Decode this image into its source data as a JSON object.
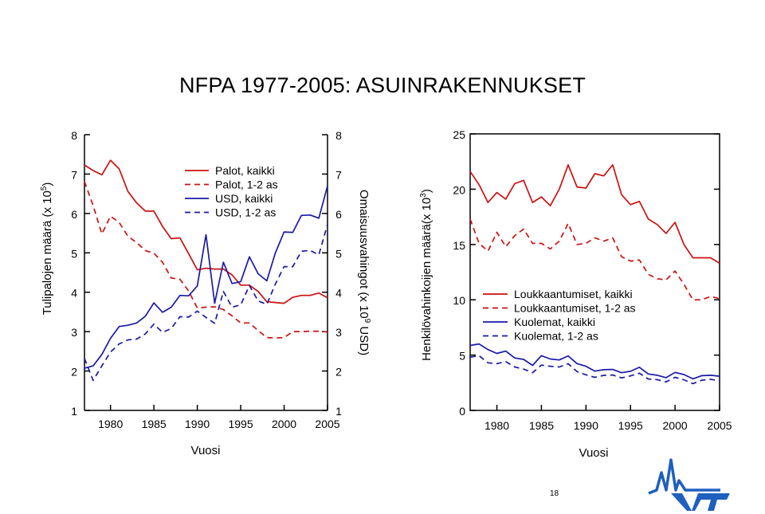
{
  "title": "NFPA 1977-2005: ASUINRAKENNUKSET",
  "page_number": "18",
  "logo_text": "VTT",
  "colors": {
    "red": "#cc1111",
    "blue": "#1a1aa6",
    "logo_blue": "#1f5fbf",
    "axis": "#000000"
  },
  "chart_data": [
    {
      "type": "line",
      "xlabel": "Vuosi",
      "xlim": [
        1977,
        2005
      ],
      "xticks": [
        1980,
        1985,
        1990,
        1995,
        2000,
        2005
      ],
      "ylabel_left_main": "Tulipalojen määrä (x 10",
      "ylabel_left_sup": "5",
      "ylabel_left_end": ")",
      "ylim_left": [
        1,
        8
      ],
      "yticks_left": [
        1,
        2,
        3,
        4,
        5,
        6,
        7,
        8
      ],
      "ylabel_right_main": "Omaisuusvahingot (x 10",
      "ylabel_right_sup": "9",
      "ylabel_right_end": " USD)",
      "ylim_right": [
        1,
        8
      ],
      "yticks_right": [
        1,
        2,
        3,
        4,
        5,
        6,
        7,
        8
      ],
      "legend_position": "top",
      "series": [
        {
          "name": "Palot, kaikki",
          "color": "#cc1111",
          "dash": false,
          "values": [
            7.23,
            7.09,
            6.98,
            7.35,
            7.13,
            6.56,
            6.27,
            6.06,
            6.06,
            5.67,
            5.36,
            5.38,
            4.98,
            4.57,
            4.61,
            4.59,
            4.59,
            4.44,
            4.18,
            4.18,
            4.02,
            3.76,
            3.74,
            3.72,
            3.87,
            3.92,
            3.92,
            3.98,
            3.86
          ]
        },
        {
          "name": "Palot, 1-2 as",
          "color": "#cc1111",
          "dash": true,
          "values": [
            6.81,
            6.2,
            5.48,
            5.93,
            5.77,
            5.42,
            5.26,
            5.06,
            4.99,
            4.76,
            4.36,
            4.33,
            4.03,
            3.6,
            3.62,
            3.63,
            3.56,
            3.4,
            3.22,
            3.22,
            3.03,
            2.85,
            2.84,
            2.85,
            3.0,
            3.0,
            3.01,
            3.01,
            2.99
          ]
        },
        {
          "name": "USD, kaikki",
          "color": "#1a1aa6",
          "dash": false,
          "values": [
            2.07,
            2.13,
            2.42,
            2.83,
            3.13,
            3.16,
            3.22,
            3.39,
            3.73,
            3.49,
            3.62,
            3.92,
            3.91,
            4.16,
            5.46,
            3.72,
            4.76,
            4.22,
            4.27,
            4.9,
            4.47,
            4.29,
            5.0,
            5.53,
            5.52,
            5.95,
            5.96,
            5.88,
            6.7
          ]
        },
        {
          "name": "USD, 1-2 as",
          "color": "#1a1aa6",
          "dash": true,
          "values": [
            2.32,
            1.76,
            2.13,
            2.48,
            2.69,
            2.79,
            2.81,
            2.94,
            3.19,
            2.98,
            3.08,
            3.38,
            3.37,
            3.52,
            3.36,
            3.21,
            4.02,
            3.62,
            3.68,
            4.17,
            3.78,
            3.69,
            4.21,
            4.65,
            4.65,
            5.04,
            5.06,
            4.95,
            5.72
          ]
        }
      ]
    },
    {
      "type": "line",
      "xlabel": "Vuosi",
      "xlim": [
        1977,
        2005
      ],
      "xticks": [
        1980,
        1985,
        1990,
        1995,
        2000,
        2005
      ],
      "ylabel_main": "Henkilövahinkoijen määrä(x 10",
      "ylabel_sup": "3",
      "ylabel_end": ")",
      "ylim": [
        0,
        25
      ],
      "yticks": [
        0,
        5,
        10,
        15,
        20,
        25
      ],
      "legend_position": "center-right",
      "series": [
        {
          "name": "Loukkaantumiset, kaikki",
          "color": "#cc1111",
          "dash": false,
          "values": [
            21.6,
            20.4,
            18.8,
            19.7,
            19.1,
            20.5,
            20.8,
            18.8,
            19.3,
            18.5,
            20.0,
            22.2,
            20.2,
            20.1,
            21.4,
            21.2,
            22.2,
            19.5,
            18.6,
            18.9,
            17.3,
            16.8,
            16.0,
            17.0,
            15.0,
            13.8,
            13.8,
            13.8,
            13.3
          ]
        },
        {
          "name": "Loukkaantumiset, 1-2 as",
          "color": "#cc1111",
          "dash": true,
          "values": [
            17.3,
            15.1,
            14.4,
            16.1,
            14.8,
            15.8,
            16.4,
            15.1,
            15.1,
            14.6,
            15.3,
            16.9,
            15.0,
            15.1,
            15.6,
            15.3,
            15.6,
            13.9,
            13.5,
            13.6,
            12.3,
            11.9,
            11.8,
            12.6,
            11.4,
            10.0,
            10.0,
            10.3,
            10.1
          ]
        },
        {
          "name": "Kuolemat, kaikki",
          "color": "#1a1aa6",
          "dash": false,
          "values": [
            5.87,
            6.01,
            5.5,
            5.15,
            5.36,
            4.74,
            4.61,
            4.07,
            4.95,
            4.65,
            4.56,
            4.93,
            4.23,
            3.99,
            3.55,
            3.68,
            3.7,
            3.41,
            3.54,
            3.9,
            3.29,
            3.18,
            2.96,
            3.44,
            3.24,
            2.85,
            3.14,
            3.18,
            3.09
          ]
        },
        {
          "name": "Kuolemat, 1-2 as",
          "color": "#1a1aa6",
          "dash": true,
          "values": [
            4.82,
            4.94,
            4.3,
            4.23,
            4.41,
            3.93,
            3.74,
            3.41,
            4.1,
            3.99,
            3.93,
            4.22,
            3.51,
            3.22,
            2.99,
            3.17,
            3.2,
            2.94,
            3.12,
            3.36,
            2.84,
            2.78,
            2.58,
            2.99,
            2.77,
            2.42,
            2.73,
            2.82,
            2.66
          ]
        }
      ]
    }
  ]
}
